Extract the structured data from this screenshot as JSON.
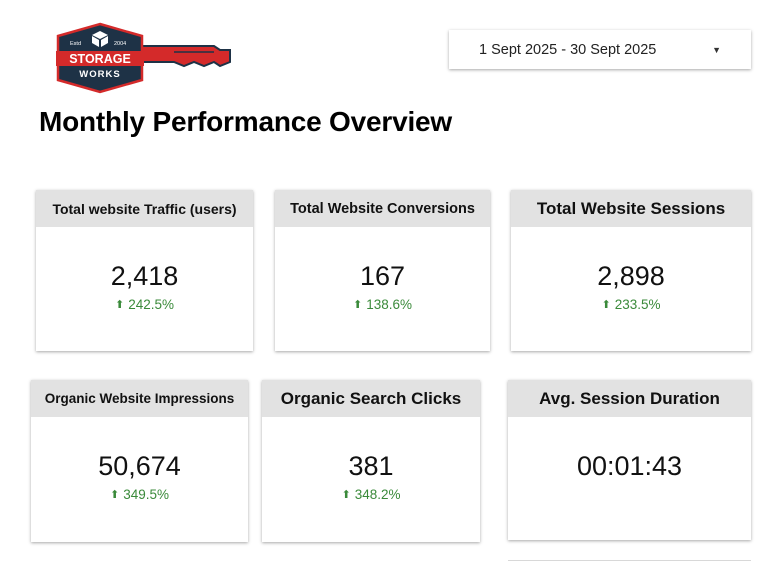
{
  "logo": {
    "estd": "Estd",
    "year": "2004",
    "line1": "STORAGE",
    "line2": "WORKS"
  },
  "date_range": {
    "label": "1 Sept 2025 - 30 Sept 2025"
  },
  "page": {
    "title": "Monthly Performance Overview"
  },
  "colors": {
    "positive": "#3a8a3a",
    "header_bg": "#e2e2e2",
    "logo_navy": "#1e3246",
    "logo_red": "#d42a2a"
  },
  "cards": [
    {
      "header": "Total website Traffic (users)",
      "value": "2,418",
      "delta": "242.5%",
      "trend": "up"
    },
    {
      "header": "Total Website Conversions",
      "value": "167",
      "delta": "138.6%",
      "trend": "up"
    },
    {
      "header": "Total Website Sessions",
      "value": "2,898",
      "delta": "233.5%",
      "trend": "up"
    },
    {
      "header": "Organic Website Impressions",
      "value": "50,674",
      "delta": "349.5%",
      "trend": "up"
    },
    {
      "header": "Organic Search Clicks",
      "value": "381",
      "delta": "348.2%",
      "trend": "up"
    },
    {
      "header": "Avg. Session Duration",
      "value": "00:01:43"
    }
  ]
}
